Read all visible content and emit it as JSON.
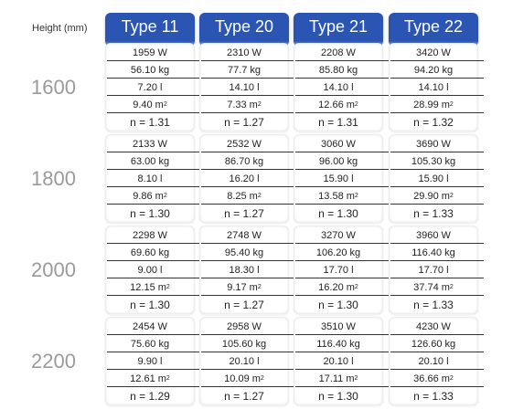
{
  "height_label": "Height (mm)",
  "types": [
    "Type 11",
    "Type 20",
    "Type 21",
    "Type 22"
  ],
  "heights": [
    "1600",
    "1800",
    "2000",
    "2200"
  ],
  "groups": [
    [
      [
        "1959 W",
        "56.10 kg",
        "7.20 l",
        "9.40 m",
        "n = 1.31"
      ],
      [
        "2310 W",
        "77.7 kg",
        "14.10 l",
        "7.33 m",
        "n = 1.27"
      ],
      [
        "2208 W",
        "85.80 kg",
        "14.10 l",
        "12.66 m",
        "n = 1.31"
      ],
      [
        "3420 W",
        "94.20 kg",
        "14.10 l",
        "28.99 m",
        "n = 1.32"
      ]
    ],
    [
      [
        "2133 W",
        "63.00 kg",
        "8.10 l",
        "9.86 m",
        "n = 1.30"
      ],
      [
        "2532 W",
        "86.70 kg",
        "16.20 l",
        "8.25 m",
        "n = 1.27"
      ],
      [
        "3060 W",
        "96.00 kg",
        "15.90 l",
        "13.58 m",
        "n = 1.30"
      ],
      [
        "3690 W",
        "105.30 kg",
        "15.90 l",
        "29.90 m",
        "n = 1.33"
      ]
    ],
    [
      [
        "2298 W",
        "69.60 kg",
        "9.00 l",
        "12.15 m",
        "n = 1.30"
      ],
      [
        "2748 W",
        "95.40 kg",
        "18.30 l",
        "9.17 m",
        "n = 1.27"
      ],
      [
        "3270 W",
        "106.20 kg",
        "17.70 l",
        "16.20 m",
        "n = 1.30"
      ],
      [
        "3960 W",
        "116.40 kg",
        "17.70 l",
        "37.74 m",
        "n = 1.33"
      ]
    ],
    [
      [
        "2454 W",
        "75.60 kg",
        "9.90 l",
        "12.61 m",
        "n = 1.29"
      ],
      [
        "2958 W",
        "105.60 kg",
        "20.10 l",
        "10.09 m",
        "n = 1.27"
      ],
      [
        "3510 W",
        "116.40 kg",
        "20.10 l",
        "17.11 m",
        "n = 1.30"
      ],
      [
        "4230 W",
        "126.60 kg",
        "20.10 l",
        "36.66 m",
        "n = 1.33"
      ]
    ]
  ],
  "area_exponent": "2"
}
